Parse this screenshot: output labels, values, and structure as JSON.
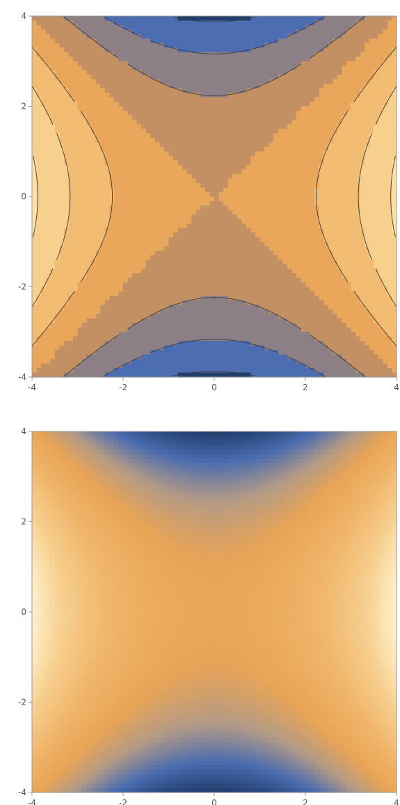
{
  "chart_data": [
    {
      "type": "contour",
      "function": "x^2 - y^2",
      "xlim": [
        -4,
        4
      ],
      "ylim": [
        -4,
        4
      ],
      "x_ticks": [
        -4,
        -2,
        0,
        2,
        4
      ],
      "y_ticks": [
        -4,
        -2,
        0,
        2,
        4
      ],
      "x_tick_labels": [
        "-4",
        "-2",
        "0",
        "2",
        "4"
      ],
      "y_tick_labels": [
        "-4",
        "-2",
        "0",
        "2",
        "4"
      ],
      "contour_levels": [
        -15,
        -10,
        -5,
        0,
        5,
        10,
        15
      ],
      "band_colors": [
        "#22406e",
        "#4c6db2",
        "#8c8086",
        "#c39063",
        "#eaa75c",
        "#f2bc73",
        "#f8d08e",
        "#fde1a4"
      ],
      "title": "",
      "xlabel": "",
      "ylabel": ""
    },
    {
      "type": "heatmap",
      "function": "x^2 - y^2",
      "xlim": [
        -4,
        4
      ],
      "ylim": [
        -4,
        4
      ],
      "x_ticks": [
        -4,
        -2,
        0,
        2,
        4
      ],
      "y_ticks": [
        -4,
        -2,
        0,
        2,
        4
      ],
      "x_tick_labels": [
        "-4",
        "-2",
        "0",
        "2",
        "4"
      ],
      "y_tick_labels": [
        "-4",
        "-2",
        "0",
        "2",
        "4"
      ],
      "value_range": [
        -16,
        16
      ],
      "color_stops": [
        {
          "value": -16,
          "color": "#203d6c"
        },
        {
          "value": -11,
          "color": "#4a6cb0"
        },
        {
          "value": -6,
          "color": "#b39a86"
        },
        {
          "value": -1,
          "color": "#e9a456"
        },
        {
          "value": 5,
          "color": "#efb56a"
        },
        {
          "value": 11,
          "color": "#f7cf8f"
        },
        {
          "value": 16,
          "color": "#fff1cc"
        }
      ],
      "title": "",
      "xlabel": "",
      "ylabel": ""
    }
  ]
}
